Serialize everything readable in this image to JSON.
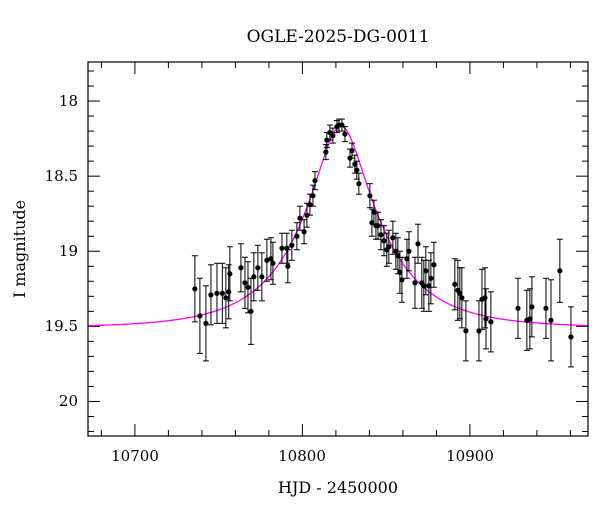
{
  "chart_data": {
    "type": "scatter",
    "title": "OGLE-2025-DG-0011",
    "xlabel": "HJD - 2450000",
    "ylabel": "I magnitude",
    "xlim": [
      10672,
      10970.5
    ],
    "ylim": [
      20.23,
      17.74
    ],
    "y_inverted": true,
    "grid": false,
    "x_ticks": [
      10700,
      10800,
      10900
    ],
    "y_ticks": [
      18,
      18.5,
      19,
      19.5,
      20
    ],
    "x_tick_labels": [
      "10700",
      "10800",
      "10900"
    ],
    "y_tick_labels": [
      "18",
      "18.5",
      "19",
      "19.5",
      "20"
    ],
    "point_color": "#000000",
    "model_color": "#ff00ff",
    "model": {
      "type": "point-lens",
      "t0": 10823,
      "u0": 0.3,
      "tE": 47,
      "baseline": 19.51
    },
    "points": [
      [
        10735.8,
        19.25,
        0.22
      ],
      [
        10738.8,
        19.43,
        0.25
      ],
      [
        10742.4,
        19.48,
        0.25
      ],
      [
        10745.4,
        19.29,
        0.2
      ],
      [
        10749,
        19.28,
        0.2
      ],
      [
        10752.2,
        19.28,
        0.2
      ],
      [
        10754.3,
        19.31,
        0.2
      ],
      [
        10756,
        19.27,
        0.18
      ],
      [
        10756.7,
        19.15,
        0.18
      ],
      [
        10763.3,
        19.11,
        0.16
      ],
      [
        10765.7,
        19.21,
        0.17
      ],
      [
        10767.5,
        19.24,
        0.17
      ],
      [
        10769.3,
        19.4,
        0.22
      ],
      [
        10771,
        19.17,
        0.16
      ],
      [
        10773.4,
        19.11,
        0.15
      ],
      [
        10775.8,
        19.17,
        0.16
      ],
      [
        10778.8,
        19.06,
        0.14
      ],
      [
        10781.2,
        19.05,
        0.14
      ],
      [
        10782.4,
        19.08,
        0.14
      ],
      [
        10787.8,
        18.98,
        0.1
      ],
      [
        10790.7,
        18.98,
        0.1
      ],
      [
        10791.3,
        19.1,
        0.11
      ],
      [
        10793.7,
        18.96,
        0.1
      ],
      [
        10796.7,
        18.9,
        0.09
      ],
      [
        10798.5,
        18.78,
        0.08
      ],
      [
        10801,
        18.87,
        0.08
      ],
      [
        10802.7,
        18.76,
        0.08
      ],
      [
        10804.5,
        18.69,
        0.07
      ],
      [
        10806.3,
        18.63,
        0.07
      ],
      [
        10807.5,
        18.53,
        0.06
      ],
      [
        10814,
        18.34,
        0.05
      ],
      [
        10814.6,
        18.26,
        0.05
      ],
      [
        10816.4,
        18.21,
        0.05
      ],
      [
        10818.2,
        18.23,
        0.05
      ],
      [
        10820.6,
        18.17,
        0.04
      ],
      [
        10821.8,
        18.16,
        0.04
      ],
      [
        10823.6,
        18.16,
        0.04
      ],
      [
        10825.4,
        18.22,
        0.05
      ],
      [
        10828.4,
        18.38,
        0.06
      ],
      [
        10829.6,
        18.33,
        0.05
      ],
      [
        10831.3,
        18.42,
        0.06
      ],
      [
        10832.5,
        18.46,
        0.06
      ],
      [
        10833.7,
        18.55,
        0.07
      ],
      [
        10840.3,
        18.63,
        0.08
      ],
      [
        10841.5,
        18.81,
        0.09
      ],
      [
        10842.7,
        18.74,
        0.08
      ],
      [
        10843.9,
        18.83,
        0.09
      ],
      [
        10845.1,
        18.83,
        0.09
      ],
      [
        10846.9,
        18.89,
        0.1
      ],
      [
        10848.7,
        18.93,
        0.1
      ],
      [
        10850.4,
        18.99,
        0.11
      ],
      [
        10851.6,
        18.97,
        0.11
      ],
      [
        10854,
        18.91,
        0.11
      ],
      [
        10855.8,
        19.0,
        0.12
      ],
      [
        10857,
        19.03,
        0.12
      ],
      [
        10858.2,
        19.14,
        0.14
      ],
      [
        10859.4,
        19.19,
        0.15
      ],
      [
        10862.4,
        19.05,
        0.13
      ],
      [
        10863.6,
        19.0,
        0.13
      ],
      [
        10867.2,
        19.21,
        0.17
      ],
      [
        10869,
        18.95,
        0.13
      ],
      [
        10871.3,
        19.21,
        0.17
      ],
      [
        10872.5,
        19.23,
        0.17
      ],
      [
        10873.7,
        19.13,
        0.16
      ],
      [
        10875.5,
        19.23,
        0.17
      ],
      [
        10876.7,
        19.18,
        0.17
      ],
      [
        10878.5,
        19.09,
        0.15
      ],
      [
        10891,
        19.22,
        0.17
      ],
      [
        10892.8,
        19.26,
        0.2
      ],
      [
        10894,
        19.28,
        0.17
      ],
      [
        10895.2,
        19.31,
        0.2
      ],
      [
        10897.6,
        19.53,
        0.2
      ],
      [
        10905.4,
        19.53,
        0.2
      ],
      [
        10907.2,
        19.32,
        0.2
      ],
      [
        10909,
        19.31,
        0.2
      ],
      [
        10909.6,
        19.45,
        0.2
      ],
      [
        10912.5,
        19.47,
        0.2
      ],
      [
        10928.7,
        19.38,
        0.2
      ],
      [
        10934,
        19.46,
        0.2
      ],
      [
        10935.8,
        19.45,
        0.2
      ],
      [
        10937,
        19.37,
        0.2
      ],
      [
        10945.4,
        19.38,
        0.2
      ],
      [
        10948.4,
        19.46,
        0.27
      ],
      [
        10953.7,
        19.13,
        0.21
      ],
      [
        10960.3,
        19.57,
        0.2
      ]
    ]
  }
}
